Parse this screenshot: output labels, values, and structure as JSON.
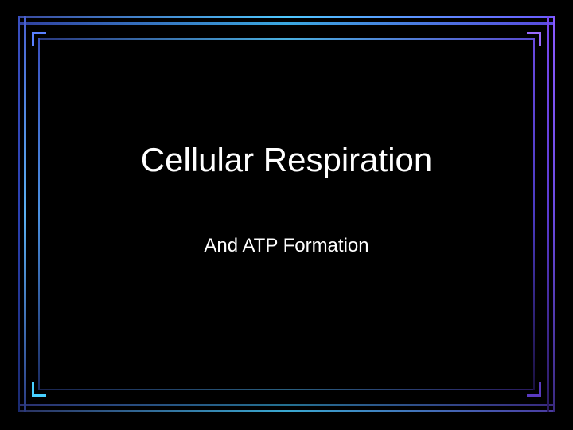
{
  "slide": {
    "title": "Cellular Respiration",
    "subtitle": "And ATP Formation",
    "background_color": "#000000",
    "text_color": "#ffffff",
    "title_fontsize": 42,
    "subtitle_fontsize": 24,
    "font_family": "Verdana",
    "frame": {
      "outer_colors": {
        "top_gradient": [
          "#3a4aa0",
          "#4fc8ff",
          "#6a5aff"
        ],
        "left_gradient": [
          "#3a50c0",
          "#5ab0f0",
          "#1a2a70"
        ],
        "right_gradient": [
          "#8a5aff",
          "#6a4ae0",
          "#3a2a80"
        ],
        "bottom_gradient": [
          "#2a3060",
          "#3aa8d0",
          "#4a3aa0"
        ]
      },
      "inner_colors": {
        "top_gradient": [
          "#2a3880",
          "#4ab0e0",
          "#5a4ad0"
        ],
        "left_gradient": [
          "#3a50c0",
          "#4a90e0",
          "#1a2a60"
        ],
        "right_gradient": [
          "#6a4ae0",
          "#4a3ac0",
          "#1a1040"
        ],
        "bottom_gradient": [
          "#1a2450",
          "#2a6080",
          "#2a1a60"
        ]
      },
      "corner_colors": {
        "top_left": "#5a80ff",
        "top_right": "#9a6aff",
        "bottom_left": "#48d0ff",
        "bottom_right": "#5a3ac0"
      },
      "line_thickness_outer": 3,
      "line_thickness_inner": 2,
      "double_line_gap": 8
    }
  }
}
